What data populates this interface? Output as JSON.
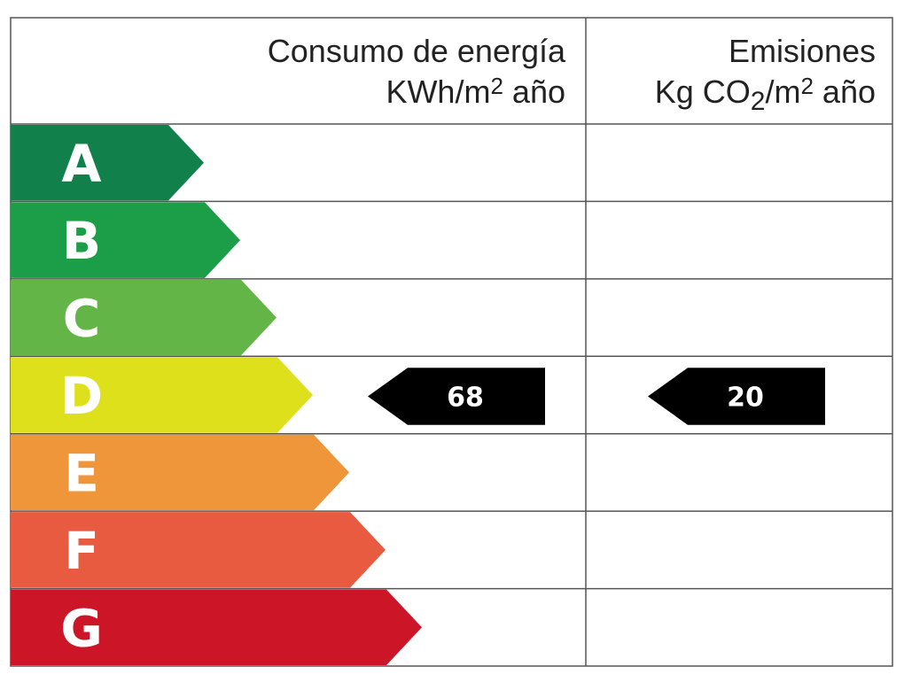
{
  "header": {
    "energy_title": "Consumo de energía",
    "energy_unit": [
      "KWh/m",
      "2",
      " año"
    ],
    "emissions_title": "Emisiones",
    "emissions_unit": [
      "Kg CO",
      "2",
      "/m",
      "2",
      " año"
    ]
  },
  "ratings": [
    {
      "letter": "A",
      "color": "#12804a"
    },
    {
      "letter": "B",
      "color": "#1c9d47"
    },
    {
      "letter": "C",
      "color": "#62b546"
    },
    {
      "letter": "D",
      "color": "#dfe01c"
    },
    {
      "letter": "E",
      "color": "#f0963a"
    },
    {
      "letter": "F",
      "color": "#e85b40"
    },
    {
      "letter": "G",
      "color": "#cc1628"
    }
  ],
  "energy": {
    "value": 68,
    "class": "D"
  },
  "emissions": {
    "value": 20,
    "class": "D"
  }
}
